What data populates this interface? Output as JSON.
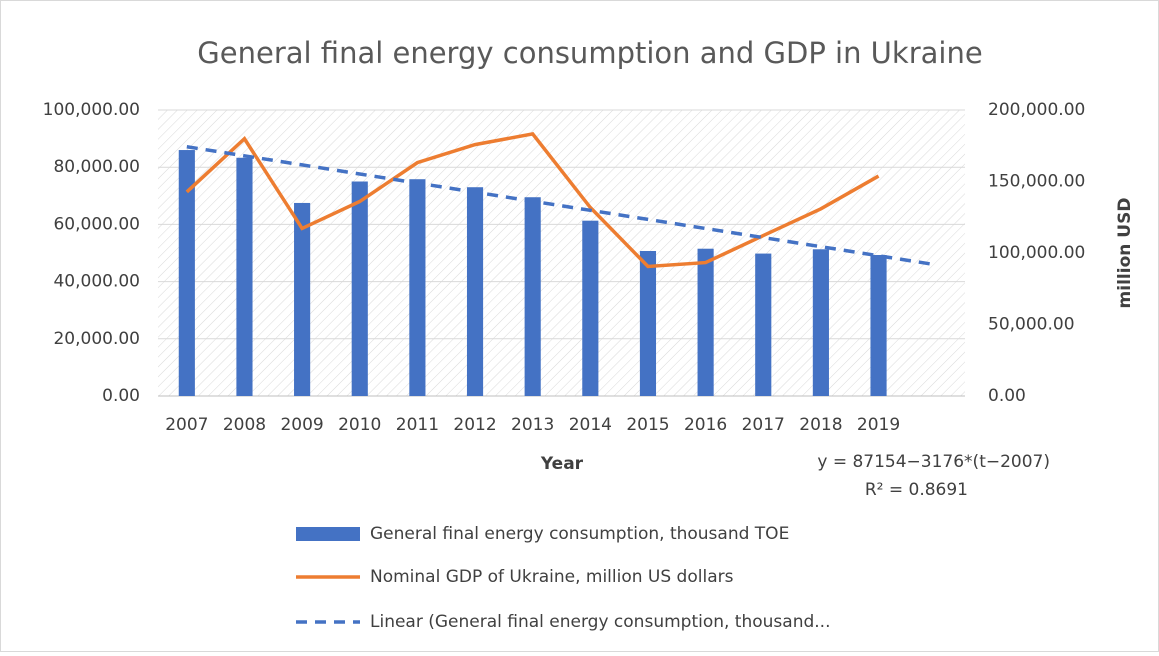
{
  "chart_data": {
    "type": "bar_line",
    "title": "General final energy consumption and GDP in Ukraine",
    "xlabel": "Year",
    "y2label": "million USD",
    "annotations": [
      "y = 87154−3176*(t−2007)",
      "R² = 0.8691"
    ],
    "categories": [
      "2007",
      "2008",
      "2009",
      "2010",
      "2011",
      "2012",
      "2013",
      "2014",
      "2015",
      "2016",
      "2017",
      "2018",
      "2019",
      null
    ],
    "series": [
      {
        "name": "General final energy consumption, thousand TOE",
        "type": "bar",
        "color": "#4472c4",
        "values": [
          86000,
          83300,
          67500,
          75000,
          75800,
          73000,
          69500,
          61300,
          50700,
          51500,
          49800,
          51300,
          49300,
          null
        ]
      },
      {
        "name": "Nominal GDP of Ukraine, million US dollars",
        "type": "line",
        "color": "#ed7d31",
        "axis": "y2",
        "values": [
          142700,
          179900,
          117200,
          136000,
          163200,
          175800,
          183300,
          131800,
          90600,
          93300,
          112200,
          130900,
          153800,
          null
        ]
      },
      {
        "name": "Linear (General final energy consumption, thousand...",
        "type": "dashed",
        "color": "#4472c4",
        "values": [
          87154,
          83978,
          80802,
          77626,
          74450,
          71274,
          68098,
          64922,
          61746,
          58570,
          55394,
          52218,
          49042,
          45866
        ]
      }
    ],
    "ylim": [
      0,
      100000
    ],
    "yticks": [
      {
        "value": 0,
        "label": "0.00"
      },
      {
        "value": 20000,
        "label": "20,000.00"
      },
      {
        "value": 40000,
        "label": "40,000.00"
      },
      {
        "value": 60000,
        "label": "60,000.00"
      },
      {
        "value": 80000,
        "label": "80,000.00"
      },
      {
        "value": 100000,
        "label": "100,000.00"
      }
    ],
    "y2lim": [
      0,
      200000
    ],
    "y2ticks": [
      {
        "value": 0,
        "label": "0.00"
      },
      {
        "value": 50000,
        "label": "50,000.00"
      },
      {
        "value": 100000,
        "label": "100,000.00"
      },
      {
        "value": 150000,
        "label": "150,000.00"
      },
      {
        "value": 200000,
        "label": "200,000.00"
      }
    ],
    "grid": true
  }
}
